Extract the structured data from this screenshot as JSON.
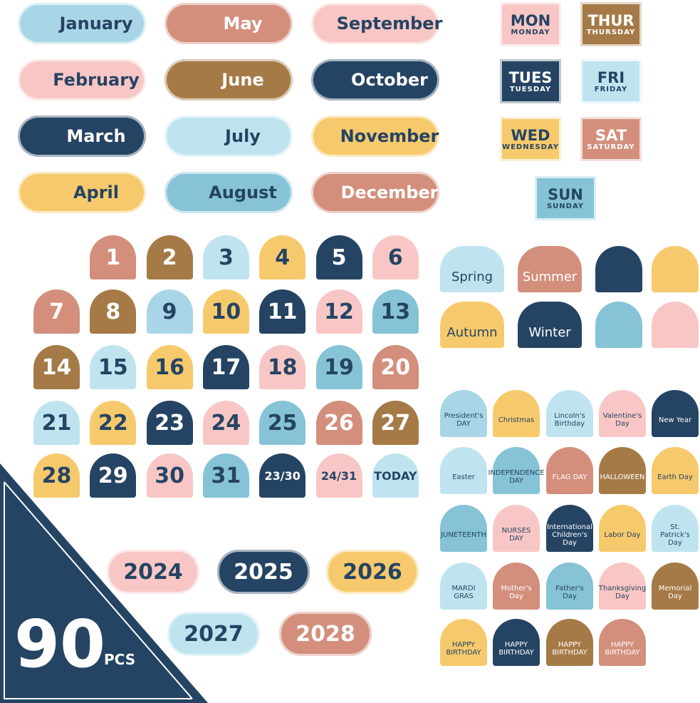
{
  "months": [
    "January",
    "May",
    "September",
    "February",
    "June",
    "October",
    "March",
    "July",
    "November",
    "April",
    "August",
    "December"
  ],
  "days": [
    {
      "short": "MON",
      "full": "MONDAY"
    },
    {
      "short": "THUR",
      "full": "THURSDAY"
    },
    {
      "short": "TUES",
      "full": "TUESDAY"
    },
    {
      "short": "FRI",
      "full": "FRIDAY"
    },
    {
      "short": "WED",
      "full": "WEDNESDAY"
    },
    {
      "short": "SAT",
      "full": "SATURDAY"
    },
    {
      "short": "SUN",
      "full": "SUNDAY"
    }
  ],
  "numbers": [
    "1",
    "2",
    "3",
    "4",
    "5",
    "6",
    "7",
    "8",
    "9",
    "10",
    "11",
    "12",
    "13",
    "14",
    "15",
    "16",
    "17",
    "18",
    "19",
    "20",
    "21",
    "22",
    "23",
    "24",
    "25",
    "26",
    "27",
    "28",
    "29",
    "30",
    "31",
    "23/30",
    "24/31",
    "TODAY"
  ],
  "seasons": [
    "Spring",
    "Summer",
    "Autumn",
    "Winter"
  ],
  "holidays": [
    "President's DAY",
    "Christmas",
    "Lincoln's Birthday",
    "Valentine's Day",
    "New Year",
    "Easter",
    "INDEPENDENCE DAY",
    "FLAG DAY",
    "HALLOWEEN",
    "Earth Day",
    "JUNETEENTH",
    "NURSES DAY",
    "International Children's Day",
    "Labor Day",
    "St. Patrick's Day",
    "MARDI GRAS",
    "Mother's Day",
    "Father's Day",
    "Thanksgiving Day",
    "Memorial Day",
    "HAPPY BIRTHDAY",
    "HAPPY BIRTHDAY",
    "HAPPY BIRTHDAY",
    "HAPPY BIRTHDAY"
  ],
  "years": [
    "2024",
    "2025",
    "2026",
    "2027",
    "2028"
  ],
  "badge": {
    "count": "90",
    "unit": "PCS"
  }
}
